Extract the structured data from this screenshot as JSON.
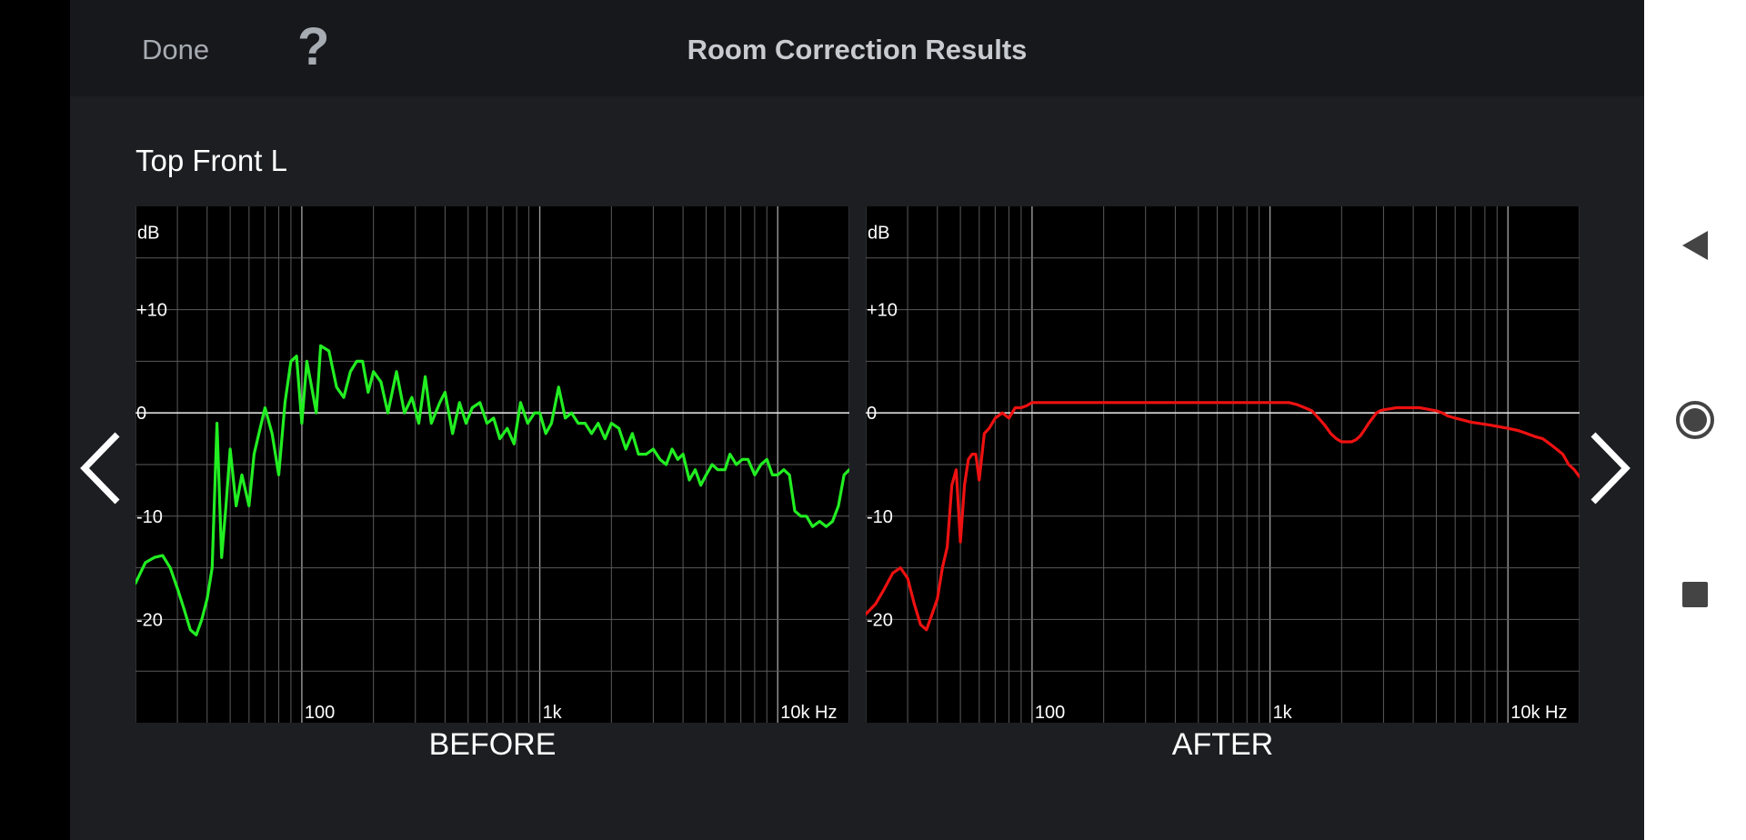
{
  "header": {
    "done_label": "Done",
    "help_label": "?",
    "title": "Room Correction Results"
  },
  "speaker_name": "Top Front L",
  "nav": {
    "prev_icon": "chevron-left-icon",
    "next_icon": "chevron-right-icon"
  },
  "system_nav": {
    "back_icon": "triangle-back-icon",
    "home_icon": "circle-home-icon",
    "recents_icon": "square-recents-icon"
  },
  "colors": {
    "before_trace": "#22ee22",
    "after_trace": "#ee1111",
    "grid": "#5a5a5a",
    "plot_bg": "#000000"
  },
  "chart_data": [
    {
      "type": "line",
      "title": "BEFORE",
      "xscale": "log",
      "xlim": [
        20,
        20000
      ],
      "ylim": [
        -30,
        20
      ],
      "ylabel": "dB",
      "yticks": [
        "+10",
        "0",
        "-10",
        "-20"
      ],
      "xticks": [
        "100",
        "1k",
        "10k Hz"
      ],
      "series": [
        {
          "x": [
            20,
            22,
            24,
            26,
            28,
            30,
            32,
            34,
            36,
            38,
            40,
            42,
            44,
            46,
            48,
            50,
            53,
            56,
            60,
            63,
            66,
            70,
            75,
            80,
            85,
            90,
            95,
            100,
            105,
            110,
            115,
            120,
            130,
            140,
            150,
            160,
            170,
            180,
            190,
            200,
            215,
            230,
            250,
            270,
            290,
            310,
            330,
            350,
            380,
            400,
            430,
            460,
            490,
            520,
            560,
            600,
            640,
            680,
            730,
            780,
            830,
            890,
            950,
            1000,
            1060,
            1120,
            1200,
            1280,
            1360,
            1450,
            1550,
            1650,
            1760,
            1880,
            2000,
            2150,
            2300,
            2450,
            2600,
            2800,
            3000,
            3200,
            3400,
            3600,
            3800,
            4000,
            4250,
            4500,
            4750,
            5000,
            5300,
            5600,
            6000,
            6300,
            6700,
            7100,
            7500,
            8000,
            8500,
            9000,
            9500,
            10000,
            10600,
            11200,
            11800,
            12500,
            13200,
            14000,
            15000,
            16000,
            17000,
            18000,
            19000,
            20000
          ],
          "y": [
            -16.5,
            -14.5,
            -14,
            -13.8,
            -15,
            -17,
            -19,
            -21,
            -21.5,
            -20,
            -18,
            -15,
            -1,
            -14,
            -9,
            -3.5,
            -9,
            -6,
            -9,
            -4,
            -2,
            0.5,
            -2,
            -6,
            1,
            5,
            5.5,
            -1,
            5,
            2.5,
            0,
            6.5,
            6,
            2.5,
            1.5,
            4,
            5,
            5,
            2,
            4,
            3,
            0,
            4,
            0,
            1.5,
            -1,
            3.5,
            -1,
            1,
            2,
            -2,
            1,
            -1,
            0.5,
            1,
            -1,
            -0.5,
            -2.5,
            -1.5,
            -3,
            1,
            -1,
            0,
            0,
            -2,
            -1,
            2.5,
            -0.5,
            0,
            -1,
            -1,
            -2,
            -1,
            -2.5,
            -1,
            -1.5,
            -3.5,
            -2,
            -4,
            -4,
            -3.5,
            -4.5,
            -5,
            -3.5,
            -4.5,
            -4,
            -6.5,
            -5.5,
            -7,
            -6,
            -5,
            -5.5,
            -5.5,
            -4,
            -5,
            -4.5,
            -4.5,
            -6,
            -5,
            -4.5,
            -6,
            -6,
            -5.5,
            -6,
            -9.5,
            -10,
            -10,
            -11,
            -10.5,
            -11,
            -10.5,
            -9,
            -6,
            -5.5
          ]
        }
      ]
    },
    {
      "type": "line",
      "title": "AFTER",
      "xscale": "log",
      "xlim": [
        20,
        20000
      ],
      "ylim": [
        -30,
        20
      ],
      "ylabel": "dB",
      "yticks": [
        "+10",
        "0",
        "-10",
        "-20"
      ],
      "xticks": [
        "100",
        "1k",
        "10k Hz"
      ],
      "series": [
        {
          "x": [
            20,
            22,
            24,
            26,
            28,
            30,
            32,
            34,
            36,
            38,
            40,
            42,
            44,
            46,
            48,
            50,
            52,
            54,
            56,
            58,
            60,
            63,
            66,
            70,
            75,
            80,
            85,
            90,
            95,
            100,
            110,
            120,
            130,
            150,
            170,
            200,
            250,
            300,
            400,
            500,
            600,
            800,
            1000,
            1100,
            1200,
            1300,
            1400,
            1500,
            1600,
            1700,
            1800,
            1900,
            2000,
            2100,
            2200,
            2300,
            2400,
            2500,
            2600,
            2700,
            2800,
            2900,
            3000,
            3200,
            3400,
            3600,
            3800,
            4000,
            4250,
            4500,
            4750,
            5000,
            5300,
            5600,
            6000,
            6500,
            7000,
            7500,
            8000,
            8500,
            9000,
            10000,
            11000,
            12000,
            13000,
            14000,
            15000,
            16000,
            17000,
            18000,
            19000,
            20000
          ],
          "y": [
            -19.5,
            -18.5,
            -17,
            -15.5,
            -15,
            -16,
            -18.5,
            -20.5,
            -21,
            -19.5,
            -18,
            -15,
            -13,
            -7,
            -5.5,
            -12.5,
            -7,
            -4.5,
            -4,
            -4,
            -6.5,
            -2,
            -1.5,
            -0.5,
            0,
            -0.5,
            0.5,
            0.5,
            0.7,
            1,
            1,
            1,
            1,
            1,
            1,
            1,
            1,
            1,
            1,
            1,
            1,
            1,
            1,
            1,
            1,
            0.8,
            0.5,
            0.2,
            -0.5,
            -1.2,
            -2,
            -2.5,
            -2.8,
            -2.8,
            -2.8,
            -2.6,
            -2.2,
            -1.6,
            -1,
            -0.5,
            0,
            0.2,
            0.3,
            0.4,
            0.5,
            0.5,
            0.5,
            0.5,
            0.5,
            0.4,
            0.3,
            0.2,
            0,
            -0.3,
            -0.5,
            -0.7,
            -0.9,
            -1,
            -1.1,
            -1.2,
            -1.3,
            -1.5,
            -1.7,
            -2,
            -2.3,
            -2.5,
            -3,
            -3.5,
            -4,
            -5,
            -5.5,
            -6.2
          ]
        }
      ]
    }
  ]
}
